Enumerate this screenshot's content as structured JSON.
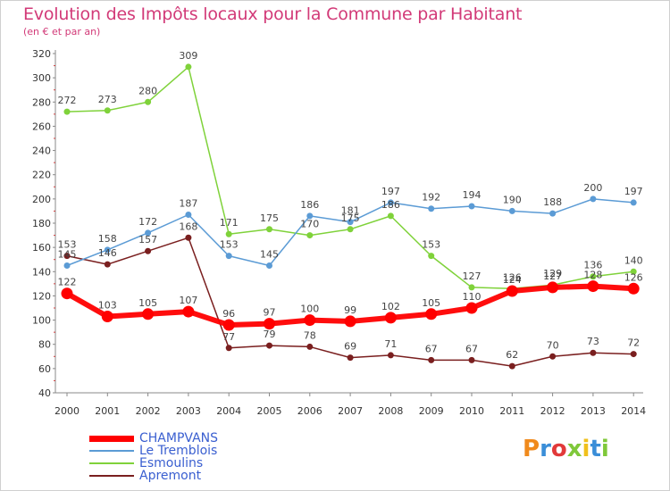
{
  "header": {
    "title": "Evolution des Impôts locaux pour la Commune par Habitant",
    "subtitle": "(en € et par an)"
  },
  "logo": {
    "text": "Proxiti"
  },
  "chart_data": {
    "type": "line",
    "title": "Evolution des Impôts locaux pour la Commune par Habitant",
    "subtitle": "(en € et par an)",
    "x": [
      "2000",
      "2001",
      "2002",
      "2003",
      "2004",
      "2005",
      "2006",
      "2007",
      "2008",
      "2009",
      "2010",
      "2011",
      "2012",
      "2013",
      "2014"
    ],
    "ylim": [
      40,
      320
    ],
    "yticks": [
      40,
      60,
      80,
      100,
      120,
      140,
      160,
      180,
      200,
      220,
      240,
      260,
      280,
      300,
      320
    ],
    "grid": false,
    "legend_position": "bottom-left",
    "series": [
      {
        "name": "CHAMPVANS",
        "color": "#ff0000",
        "values": [
          122,
          103,
          105,
          107,
          96,
          97,
          100,
          99,
          102,
          105,
          110,
          124,
          127,
          128,
          126
        ]
      },
      {
        "name": "Le Tremblois",
        "color": "#5b9bd5",
        "values": [
          145,
          158,
          172,
          187,
          153,
          145,
          186,
          181,
          197,
          192,
          194,
          190,
          188,
          200,
          197
        ]
      },
      {
        "name": "Esmoulins",
        "color": "#7fd23a",
        "values": [
          272,
          273,
          280,
          309,
          171,
          175,
          170,
          175,
          186,
          153,
          127,
          126,
          129,
          136,
          140
        ]
      },
      {
        "name": "Apremont",
        "color": "#7a1f1f",
        "values": [
          153,
          146,
          157,
          168,
          77,
          79,
          78,
          69,
          71,
          67,
          67,
          62,
          70,
          73,
          72
        ]
      }
    ]
  }
}
